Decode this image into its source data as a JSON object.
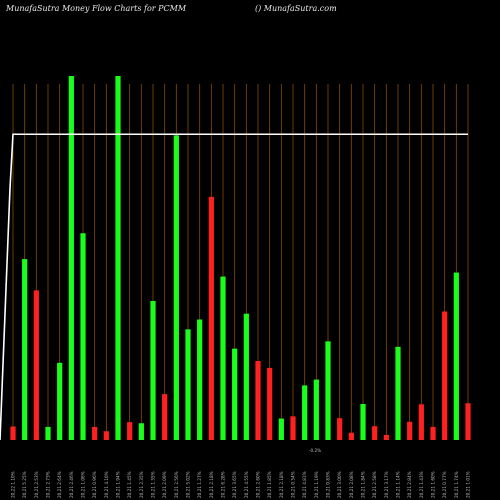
{
  "chart_data": {
    "type": "bar",
    "title": "MunafaSutra Money Flow Charts for PCMM",
    "subtitle": "() MunafaSutra.com",
    "colors": {
      "up": "#1aff1a",
      "down": "#ff2020",
      "line": "#ffffff",
      "grid": "#8a4a00",
      "background": "#000000"
    },
    "ylim": [
      0,
      100
    ],
    "categories": [
      "20,22 1.10%",
      "20,21 5.25%",
      "20,21 2.53%",
      "20,21 2.73%",
      "20,21 2.64%",
      "20,21 2.46%",
      "20,21 1.06%",
      "20,21 0.96%",
      "20,21 4.10%",
      "20,21 1.94%",
      "20,21 1.45%",
      "20,21 2.35%",
      "20,21 1.55%",
      "20,21 2.09%",
      "20,21 2.56%",
      "20,21 5.02%",
      "20,21 1.27%",
      "20,21 2.18%",
      "20,21 6.28%",
      "20,21 3.65%",
      "20,21 4.55%",
      "20,21 2.60%",
      "20,21 1.85%",
      "20,21 2.18%",
      "20,21 0.54%",
      "20,21 4.81%",
      "20,21 1.19%",
      "20,21 0.83%",
      "20,21 3.00%",
      "20,21 2.08%",
      "20,21 1.84%",
      "20,21 2.58%",
      "20,21 3.17%",
      "20,21 1.14%",
      "20,21 2.84%",
      "20,21 1.43%",
      "20,21 1.60%",
      "20,21 0.77%",
      "20,21 1.74%",
      "20,21 1.01%"
    ],
    "extra_label": "-0.2%",
    "series": [
      {
        "values": [
          3.7,
          49.7,
          41.1,
          3.6,
          21.2,
          100,
          56.8,
          3.6,
          2.4,
          100,
          4.9,
          4.6,
          38.2,
          12.6,
          83.7,
          30.4,
          33.1,
          66.8,
          44.9,
          25.1,
          34.7,
          21.7,
          19.8,
          5.9,
          6.5,
          15.0,
          16.6,
          27.1,
          6.0,
          2.0,
          9.9,
          3.8,
          1.4,
          25.6,
          5.0,
          9.8,
          3.6,
          35.3,
          46.0,
          10.1
        ]
      },
      {
        "colors": [
          "down",
          "up",
          "down",
          "up",
          "up",
          "up",
          "up",
          "down",
          "down",
          "up",
          "down",
          "up",
          "up",
          "down",
          "up",
          "up",
          "up",
          "down",
          "up",
          "up",
          "up",
          "down",
          "down",
          "up",
          "down",
          "up",
          "up",
          "up",
          "down",
          "down",
          "up",
          "down",
          "down",
          "up",
          "down",
          "down",
          "down",
          "down",
          "up",
          "down"
        ]
      }
    ],
    "line_values": [
      84,
      84,
      84,
      84,
      84,
      84,
      84,
      84,
      84,
      84,
      84,
      84,
      84,
      84,
      84,
      84,
      84,
      84,
      84,
      84,
      84,
      84,
      84,
      84,
      84,
      84,
      84,
      84,
      84,
      84,
      84,
      84,
      84,
      84,
      84,
      84,
      84,
      84,
      84,
      84
    ],
    "line_start": 0
  }
}
